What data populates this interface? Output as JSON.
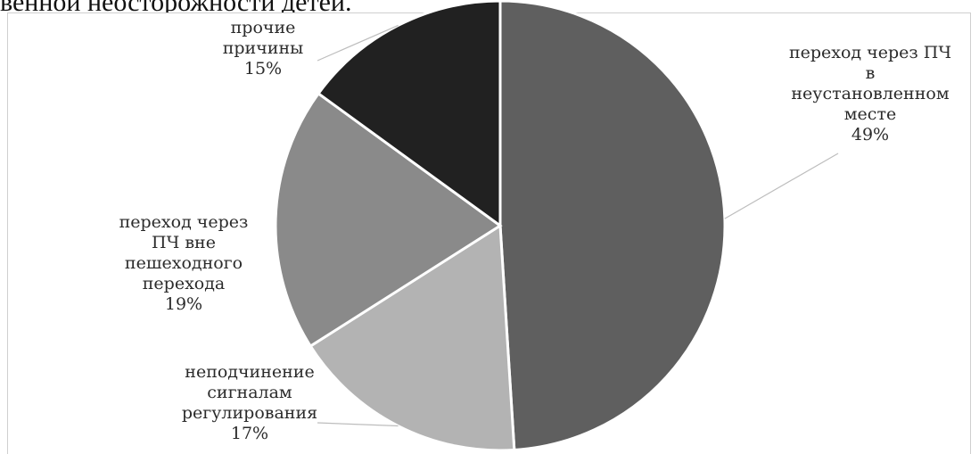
{
  "caption": "венной неосторожности детей.",
  "chart_data": {
    "type": "pie",
    "title": "",
    "start_angle_deg": 0,
    "direction": "clockwise",
    "slices": [
      {
        "label_lines": [
          "переход через ПЧ",
          "в",
          "неустановленном",
          "месте"
        ],
        "value": 49,
        "value_label": "49%",
        "color": "#5f5f5f"
      },
      {
        "label_lines": [
          "неподчинение",
          "сигналам",
          "регулирования"
        ],
        "value": 17,
        "value_label": "17%",
        "color": "#b3b3b3"
      },
      {
        "label_lines": [
          "переход через",
          "ПЧ вне",
          "пешеходного",
          "перехода"
        ],
        "value": 19,
        "value_label": "19%",
        "color": "#8a8a8a"
      },
      {
        "label_lines": [
          "прочие",
          "причины"
        ],
        "value": 15,
        "value_label": "15%",
        "color": "#212121"
      }
    ]
  }
}
